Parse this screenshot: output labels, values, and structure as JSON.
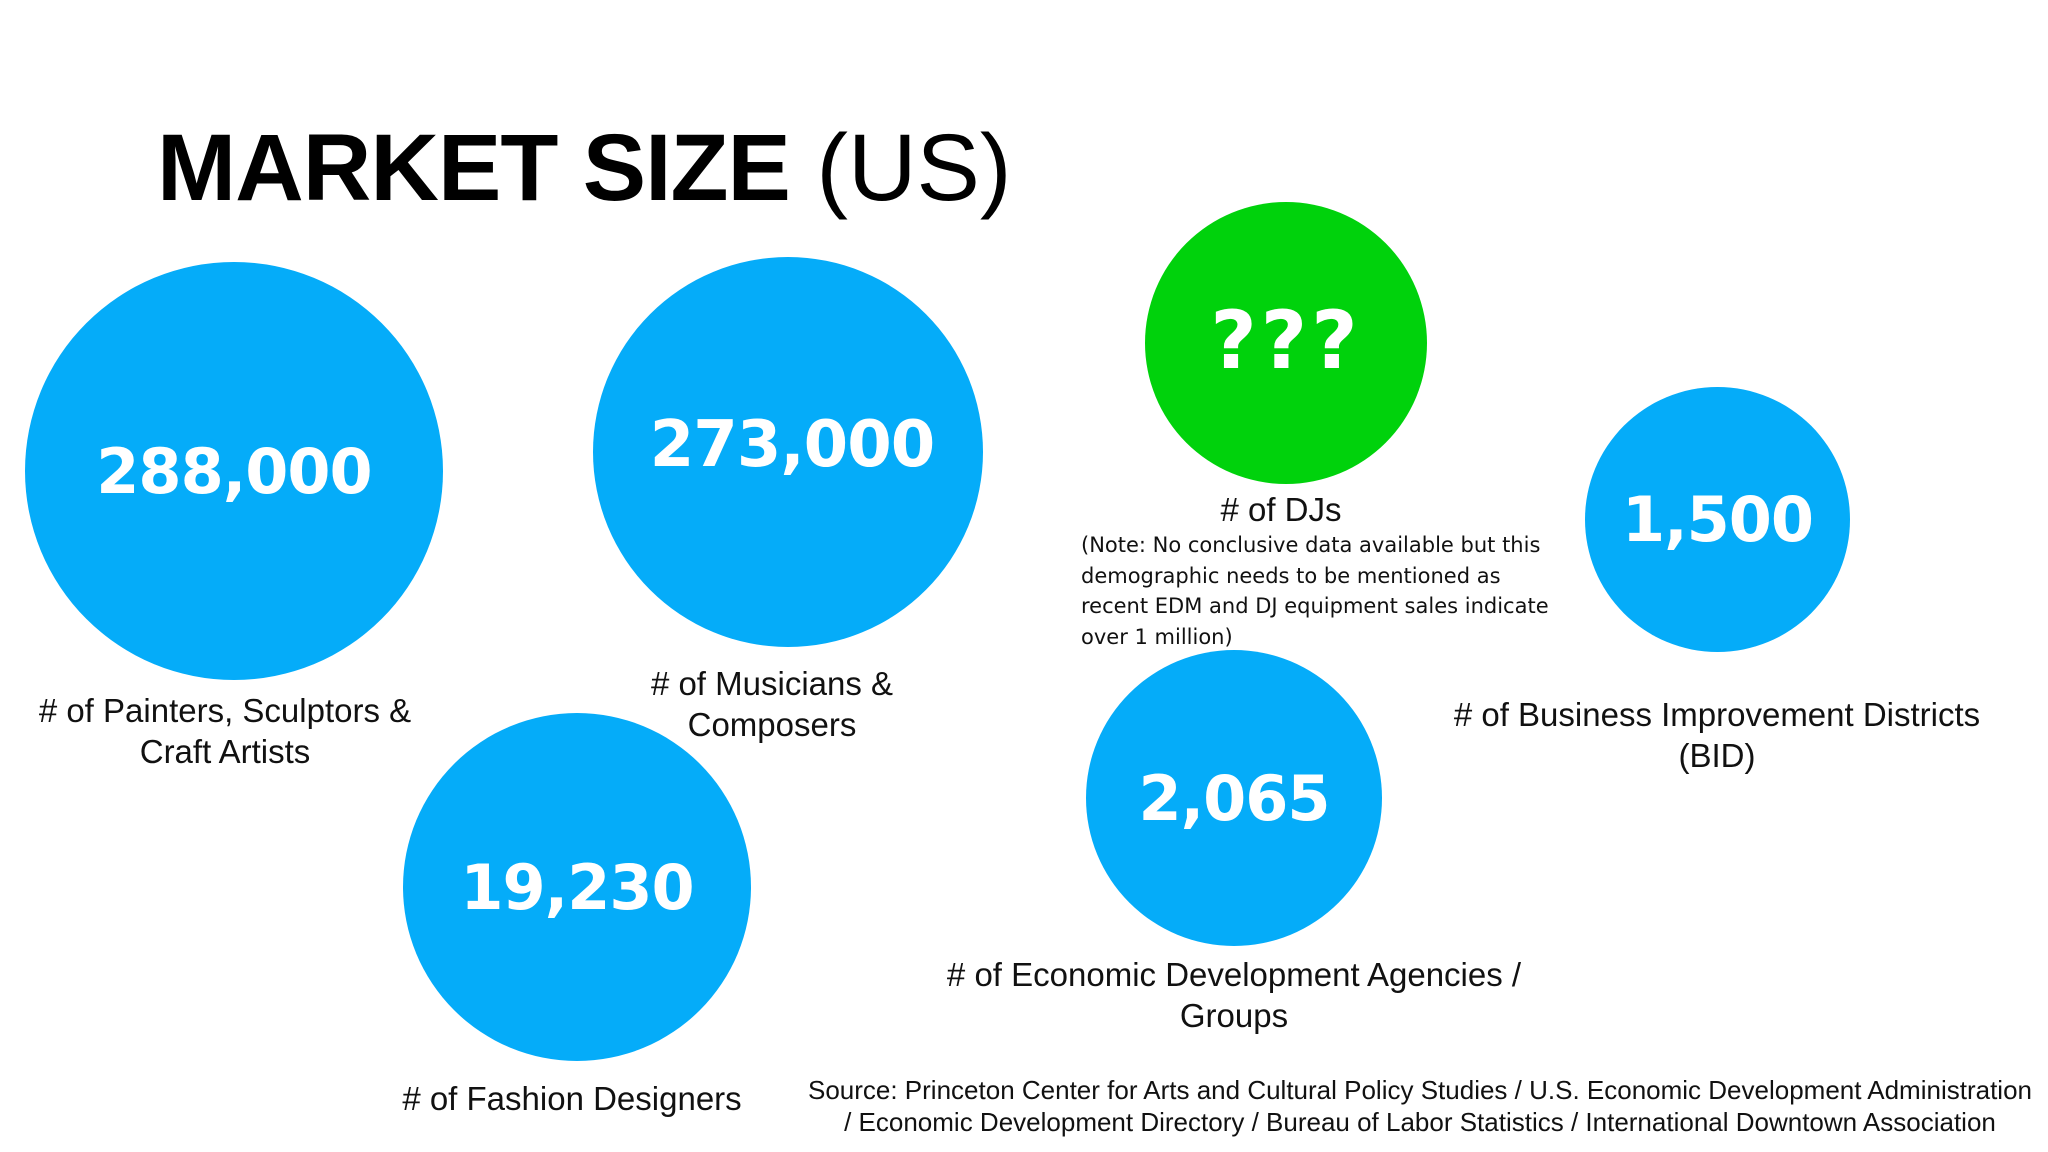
{
  "title": {
    "bold": "MARKET SIZE",
    "light": "(US)"
  },
  "metrics": [
    {
      "value": "288,000",
      "label_lines": [
        "# of Painters, Sculptors &",
        "Craft Artists"
      ]
    },
    {
      "value": "273,000",
      "label_lines": [
        "# of Musicians &",
        "Composers"
      ]
    },
    {
      "value": "19,230",
      "label_lines": [
        "# of Fashion Designers"
      ]
    },
    {
      "value": "???",
      "label_lines": [
        "# of DJs"
      ]
    },
    {
      "value": "2,065",
      "label_lines": [
        "# of Economic Development Agencies /",
        "Groups"
      ]
    },
    {
      "value": "1,500",
      "label_lines": [
        "# of Business Improvement Districts",
        "(BID)"
      ]
    }
  ],
  "dj_note_lines": [
    "(Note: No conclusive data available but this",
    "demographic needs to be mentioned as",
    "recent EDM and DJ equipment sales indicate",
    "over 1 million)"
  ],
  "source_lines": [
    "Source: Princeton Center for Arts and Cultural Policy Studies / U.S. Economic Development Administration",
    "/ Economic Development Directory / Bureau of Labor Statistics / International Downtown Association"
  ],
  "colors": {
    "bubble_blue": "#05acf9",
    "bubble_green": "#00d20c",
    "value_text": "#ffffff"
  }
}
